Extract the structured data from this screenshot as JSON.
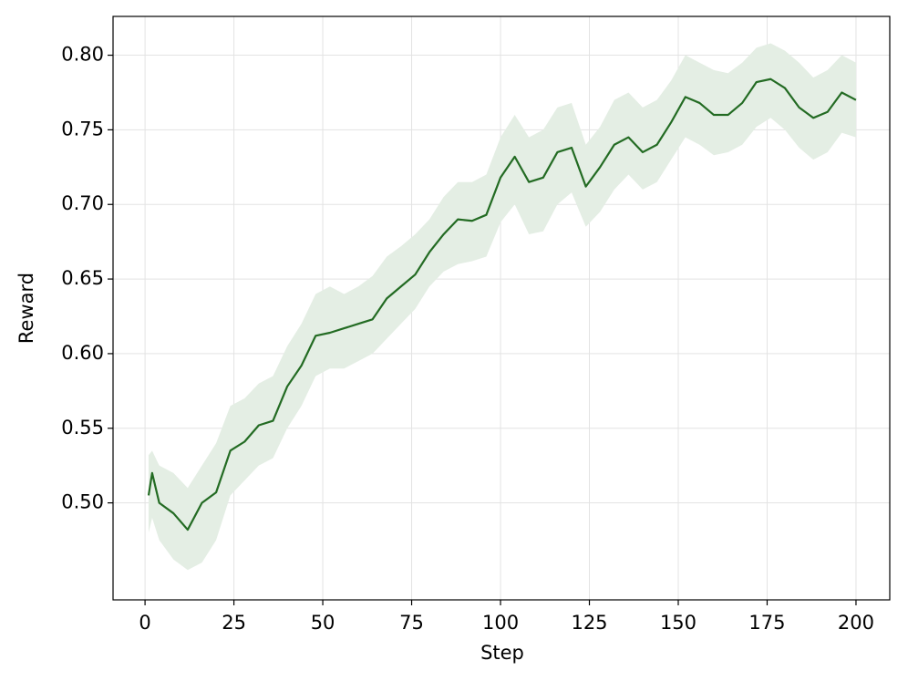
{
  "chart_data": {
    "type": "line",
    "xlabel": "Step",
    "ylabel": "Reward",
    "x": [
      1,
      2,
      4,
      8,
      12,
      16,
      20,
      24,
      28,
      32,
      36,
      40,
      44,
      48,
      52,
      56,
      60,
      64,
      68,
      72,
      76,
      80,
      84,
      88,
      92,
      96,
      100,
      104,
      108,
      112,
      116,
      120,
      124,
      128,
      132,
      136,
      140,
      144,
      148,
      152,
      156,
      160,
      164,
      168,
      172,
      176,
      180,
      184,
      188,
      192,
      196,
      200
    ],
    "series": [
      {
        "color": "#236b23",
        "band_color": "#e4eee4",
        "values": [
          0.505,
          0.52,
          0.5,
          0.493,
          0.482,
          0.5,
          0.507,
          0.535,
          0.541,
          0.552,
          0.555,
          0.578,
          0.592,
          0.612,
          0.614,
          0.617,
          0.62,
          0.623,
          0.637,
          0.645,
          0.653,
          0.668,
          0.68,
          0.69,
          0.689,
          0.693,
          0.718,
          0.732,
          0.715,
          0.718,
          0.735,
          0.738,
          0.712,
          0.725,
          0.74,
          0.745,
          0.735,
          0.74,
          0.755,
          0.772,
          0.768,
          0.76,
          0.76,
          0.768,
          0.782,
          0.784,
          0.778,
          0.765,
          0.758,
          0.762,
          0.775,
          0.77
        ],
        "lower": [
          0.48,
          0.49,
          0.475,
          0.462,
          0.455,
          0.46,
          0.475,
          0.505,
          0.515,
          0.525,
          0.53,
          0.55,
          0.565,
          0.585,
          0.59,
          0.59,
          0.595,
          0.6,
          0.61,
          0.62,
          0.63,
          0.645,
          0.655,
          0.66,
          0.662,
          0.665,
          0.688,
          0.7,
          0.68,
          0.682,
          0.7,
          0.708,
          0.685,
          0.695,
          0.71,
          0.72,
          0.71,
          0.715,
          0.73,
          0.745,
          0.74,
          0.733,
          0.735,
          0.74,
          0.752,
          0.758,
          0.75,
          0.738,
          0.73,
          0.735,
          0.748,
          0.745
        ],
        "upper": [
          0.532,
          0.535,
          0.525,
          0.52,
          0.51,
          0.525,
          0.54,
          0.565,
          0.57,
          0.58,
          0.585,
          0.605,
          0.62,
          0.64,
          0.645,
          0.64,
          0.645,
          0.652,
          0.665,
          0.672,
          0.68,
          0.69,
          0.705,
          0.715,
          0.715,
          0.72,
          0.745,
          0.76,
          0.745,
          0.75,
          0.765,
          0.768,
          0.74,
          0.752,
          0.77,
          0.775,
          0.765,
          0.77,
          0.783,
          0.8,
          0.795,
          0.79,
          0.788,
          0.795,
          0.805,
          0.808,
          0.803,
          0.795,
          0.785,
          0.79,
          0.8,
          0.795
        ]
      }
    ],
    "xlim": [
      -9,
      209.5
    ],
    "ylim": [
      0.435,
      0.826
    ],
    "xticks": [
      0,
      25,
      50,
      75,
      100,
      125,
      150,
      175,
      200
    ],
    "yticks": [
      {
        "value": 0.5,
        "label": "0.50"
      },
      0.55,
      {
        "value": 0.6,
        "label": "0.60"
      },
      0.65,
      {
        "value": 0.7,
        "label": "0.70"
      },
      0.75,
      {
        "value": 0.8,
        "label": "0.80"
      }
    ],
    "grid": true
  }
}
